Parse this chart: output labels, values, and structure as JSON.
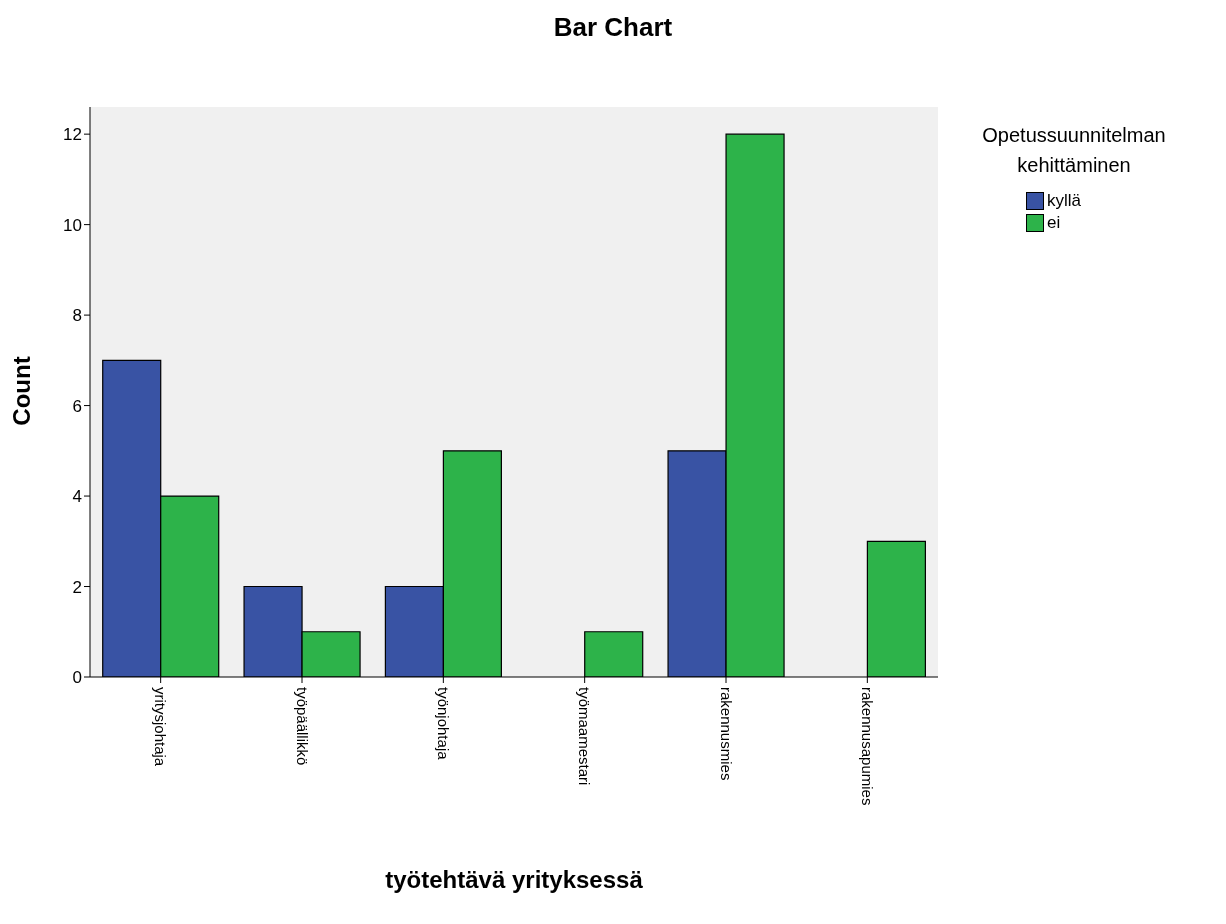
{
  "chart_data": {
    "type": "bar",
    "title": "Bar Chart",
    "xlabel": "työtehtävä yrityksessä",
    "ylabel": "Count",
    "legend_title": "Opetussuunnitelman kehittäminen",
    "legend": "top right",
    "categories": [
      "yritysjohtaja",
      "työpäällikkö",
      "työnjohtaja",
      "työmaamestari",
      "rakennusmies",
      "rakennusapumies"
    ],
    "series": [
      {
        "name": "kyllä",
        "color": "#3953a4",
        "values": [
          7,
          2,
          2,
          null,
          5,
          null
        ]
      },
      {
        "name": "ei",
        "color": "#2db34a",
        "values": [
          4,
          1,
          5,
          1,
          12,
          3
        ]
      }
    ],
    "ylim": [
      0,
      12.6
    ],
    "yticks": [
      0,
      2,
      4,
      6,
      8,
      10,
      12
    ]
  }
}
